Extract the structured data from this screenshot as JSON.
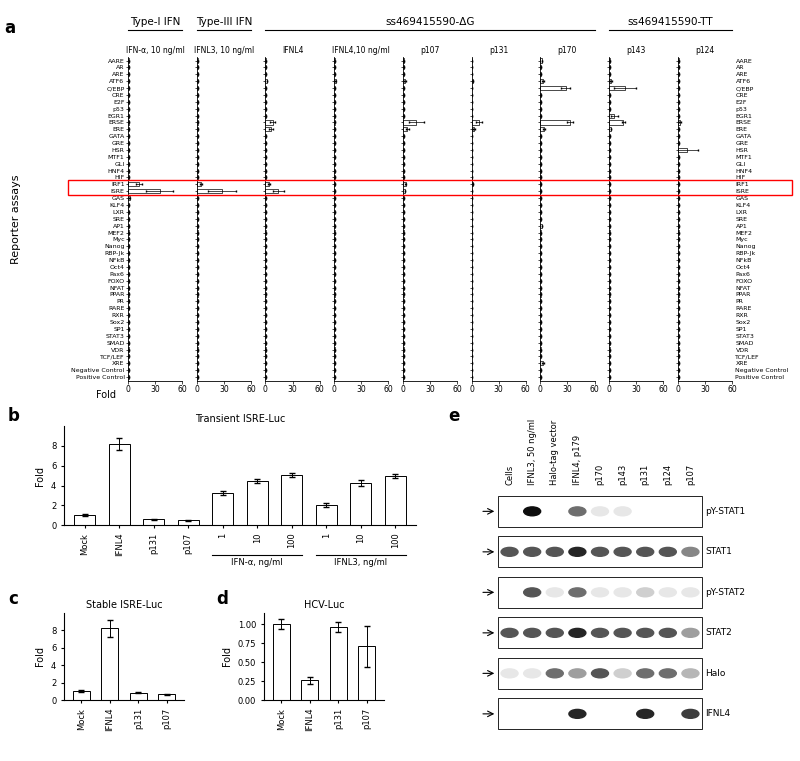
{
  "chart_data": [
    {
      "panel": "a",
      "type": "bar",
      "orientation": "horizontal",
      "color": "#ffffff",
      "xlabel": "Fold",
      "ylabel": "Reporter assays",
      "xlim": [
        0,
        60
      ],
      "xticks": [
        0,
        30,
        60
      ],
      "highlight": [
        "IRF1",
        "ISRE"
      ],
      "categories": [
        "AARE",
        "AR",
        "ARE",
        "ATF6",
        "C/EBP",
        "CRE",
        "E2F",
        "p53",
        "EGR1",
        "ERSE",
        "ERE",
        "GATA",
        "GRE",
        "HSR",
        "MTF1",
        "GLI",
        "HNF4",
        "HIF",
        "IRF1",
        "ISRE",
        "GAS",
        "KLF4",
        "LXR",
        "SRE",
        "AP1",
        "MEF2",
        "Myc",
        "Nanog",
        "RBP-Jk",
        "NFkB",
        "Oct4",
        "Pax6",
        "FOXO",
        "NFAT",
        "PPAR",
        "PR",
        "RARE",
        "RXR",
        "Sox2",
        "SP1",
        "STAT3",
        "SMAD",
        "VDR",
        "TCF/LEF",
        "XRE",
        "Negative Control",
        "Positive Control"
      ],
      "series": [
        {
          "name": "IFN-α, 10 ng/ml",
          "group": "Type-I IFN",
          "values": [
            1,
            1,
            1,
            1,
            1,
            1,
            1,
            1,
            1,
            1,
            1,
            1,
            1,
            1,
            1,
            1,
            1,
            1,
            12,
            35,
            2,
            1,
            1,
            1,
            1,
            1,
            1,
            1,
            1,
            1,
            1,
            1,
            1,
            1,
            1,
            1,
            1,
            1,
            1,
            1,
            1,
            1,
            1,
            1,
            1,
            1,
            1
          ],
          "errors": [
            0,
            0,
            0,
            0,
            0,
            0,
            0,
            0,
            0,
            0,
            0,
            0,
            0,
            0,
            0,
            0,
            0,
            0,
            3,
            15,
            0.5,
            0,
            0,
            0,
            0,
            0,
            0,
            0,
            0,
            0,
            0,
            0,
            0,
            0,
            0,
            0,
            0,
            0,
            0,
            0,
            0,
            0,
            0,
            0,
            0,
            0,
            0
          ]
        },
        {
          "name": "IFNL3, 10 ng/ml",
          "group": "Type-III IFN",
          "values": [
            1,
            1,
            1,
            1,
            1,
            1,
            1,
            1,
            1,
            1,
            1,
            1,
            1,
            1,
            1,
            1,
            1,
            1,
            5,
            28,
            1,
            1,
            1,
            1,
            1,
            1,
            1,
            1,
            1,
            1,
            1,
            1,
            1,
            1,
            1,
            1,
            1,
            1,
            1,
            1,
            1,
            1,
            1,
            1,
            1,
            1,
            1
          ],
          "errors": [
            0,
            0,
            0,
            0,
            0,
            0,
            0,
            0,
            0,
            0,
            0,
            0,
            0,
            0,
            0,
            0,
            0,
            0,
            1,
            15,
            0,
            0,
            0,
            0,
            0,
            0,
            0,
            0,
            0,
            0,
            0,
            0,
            0,
            0,
            0,
            0,
            0,
            0,
            0,
            0,
            0,
            0,
            0,
            0,
            0,
            0,
            0
          ]
        },
        {
          "name": "IFNL4",
          "group": "ss469415590-ΔG",
          "values": [
            1,
            1,
            1,
            2,
            1,
            1,
            1,
            1,
            1,
            8,
            6,
            1,
            1,
            1,
            1,
            1,
            1,
            1,
            4,
            14,
            1,
            1,
            1,
            1,
            1,
            1,
            1,
            1,
            1,
            1,
            1,
            1,
            1,
            1,
            1,
            1,
            1,
            1,
            1,
            1,
            1,
            1,
            1,
            1,
            1,
            1,
            1
          ],
          "errors": [
            0,
            0,
            0,
            0,
            0,
            0,
            0,
            0,
            0,
            3,
            2,
            0,
            0,
            0,
            0,
            0,
            0,
            0,
            1,
            6,
            0,
            0,
            0,
            0,
            0,
            0,
            0,
            0,
            0,
            0,
            0,
            0,
            0,
            0,
            0,
            0,
            0,
            0,
            0,
            0,
            0,
            0,
            0,
            0,
            0,
            0,
            0
          ]
        },
        {
          "name": "IFNL4,10 ng/ml",
          "group": "ss469415590-ΔG",
          "values": [
            1,
            1,
            1,
            2,
            1.5,
            1,
            1,
            1,
            1,
            1.5,
            1,
            1,
            1,
            1,
            1,
            1,
            1,
            1,
            1,
            1.5,
            1,
            1,
            1,
            1,
            1,
            1,
            1,
            1,
            1,
            1,
            1,
            1,
            1,
            1,
            1,
            1,
            1,
            1,
            1,
            1,
            1,
            1,
            1,
            1,
            1,
            1,
            1
          ],
          "errors": [
            0,
            0,
            0,
            0.5,
            0,
            0,
            0,
            0,
            0,
            0,
            0,
            0,
            0,
            0,
            0,
            0,
            0,
            0,
            0,
            0,
            0,
            0,
            0,
            0,
            0,
            0,
            0,
            0,
            0,
            0,
            0,
            0,
            0,
            0,
            0,
            0,
            0,
            0,
            0,
            0,
            0,
            0,
            0,
            0,
            0,
            0,
            0
          ]
        },
        {
          "name": "p107",
          "group": "ss469415590-ΔG",
          "values": [
            1,
            1,
            1,
            2,
            1,
            1,
            1,
            1,
            1,
            15,
            5,
            1,
            1,
            1,
            1,
            1,
            1,
            1,
            3,
            2,
            1,
            1,
            1,
            1,
            1,
            1,
            1,
            1,
            1,
            1,
            1,
            1,
            1,
            1,
            1,
            1,
            1,
            1,
            1,
            1,
            1,
            1,
            1,
            1,
            1,
            1,
            1
          ],
          "errors": [
            0,
            0,
            0,
            1,
            0,
            0,
            0,
            0,
            0,
            8,
            2,
            0,
            0,
            0,
            0,
            0,
            0,
            0,
            1,
            0,
            0,
            0,
            0,
            0,
            0,
            0,
            0,
            0,
            0,
            0,
            0,
            0,
            0,
            0,
            0,
            0,
            0,
            0,
            0,
            0,
            0,
            0,
            0,
            0,
            0,
            0,
            0
          ]
        },
        {
          "name": "p131",
          "group": "ss469415590-ΔG",
          "values": [
            1,
            1,
            1,
            2,
            1,
            1,
            1,
            1,
            1,
            8,
            3,
            1,
            1,
            1,
            1,
            1,
            1,
            1,
            1.5,
            1,
            1,
            1,
            1,
            1,
            1,
            1,
            1,
            1,
            1,
            1,
            1,
            1,
            1,
            1,
            1,
            1,
            1,
            1,
            1,
            1,
            1,
            1,
            1,
            1,
            1,
            1,
            1
          ],
          "errors": [
            0,
            0,
            0,
            0,
            0,
            0,
            0,
            0,
            0,
            3,
            1,
            0,
            0,
            0,
            0,
            0,
            0,
            0,
            0,
            0,
            0,
            0,
            0,
            0,
            0,
            0,
            0,
            0,
            0,
            0,
            0,
            0,
            0,
            0,
            0,
            0,
            0,
            0,
            0,
            0,
            0,
            0,
            0,
            0,
            0,
            0,
            0
          ]
        },
        {
          "name": "p170",
          "group": "ss469415590-ΔG",
          "values": [
            2,
            1,
            1,
            3,
            28,
            1,
            1,
            1,
            1,
            33,
            4,
            1,
            1,
            1,
            1,
            1,
            1,
            1,
            1,
            1,
            1,
            1,
            1,
            1,
            2,
            1,
            1,
            1,
            1,
            1,
            1,
            1,
            1,
            1,
            1,
            1,
            1,
            1,
            1,
            1,
            1,
            1,
            1,
            1,
            3,
            1,
            1
          ],
          "errors": [
            0,
            0,
            0,
            1,
            5,
            0,
            0,
            0,
            0,
            3,
            1,
            0,
            0,
            0,
            0,
            0,
            0,
            0,
            0,
            0,
            0,
            0,
            0,
            0,
            0,
            0,
            0,
            0,
            0,
            0,
            0,
            0,
            0,
            0,
            0,
            0,
            0,
            0,
            0,
            0,
            0,
            0,
            0,
            0,
            1,
            0,
            0
          ]
        },
        {
          "name": "p143",
          "group": "ss469415590-TT",
          "values": [
            1,
            1,
            1,
            2,
            18,
            1,
            1,
            1,
            6,
            16,
            2,
            1,
            1,
            1,
            1,
            1,
            1,
            1,
            1,
            1,
            1,
            1,
            1,
            1,
            1,
            1,
            1,
            1,
            1,
            1,
            1,
            1,
            1,
            1,
            1,
            1,
            1,
            1,
            1,
            1,
            1,
            1,
            1,
            1,
            1,
            1,
            1
          ],
          "errors": [
            0,
            0,
            0,
            1,
            12,
            0,
            0,
            0,
            4,
            2,
            0,
            0,
            0,
            0,
            0,
            0,
            0,
            0,
            0,
            0,
            0,
            0,
            0,
            0,
            0,
            0,
            0,
            0,
            0,
            0,
            0,
            0,
            0,
            0,
            0,
            0,
            0,
            0,
            0,
            0,
            0,
            0,
            0,
            0,
            0,
            0,
            0
          ]
        },
        {
          "name": "p124",
          "group": "ss469415590-TT",
          "values": [
            1,
            1,
            1,
            1,
            1,
            1,
            1,
            1,
            1,
            3,
            1,
            1,
            1,
            10,
            1,
            1,
            1,
            1,
            1,
            1,
            1,
            1,
            1,
            1,
            1,
            1,
            1,
            1,
            1,
            1,
            1,
            1,
            1,
            1,
            1,
            1,
            1,
            1,
            1,
            1,
            1,
            1,
            1,
            1,
            1,
            1,
            1
          ],
          "errors": [
            0,
            0,
            0,
            0,
            0,
            0,
            0,
            0,
            0,
            1,
            0,
            0,
            0,
            12,
            0,
            0,
            0,
            0,
            0,
            0,
            0,
            0,
            0,
            0,
            0,
            0,
            0,
            0,
            0,
            0,
            0,
            0,
            0,
            0,
            0,
            0,
            0,
            0,
            0,
            0,
            0,
            0,
            0,
            0,
            0,
            0,
            0
          ]
        }
      ]
    },
    {
      "panel": "b",
      "type": "bar",
      "title": "Transient ISRE-Luc",
      "ylabel": "Fold",
      "color": "#ffffff",
      "categories": [
        "Mock",
        "IFNL4",
        "p131",
        "p107",
        "1",
        "10",
        "100",
        "1",
        "10",
        "100"
      ],
      "groups": [
        null,
        null,
        null,
        null,
        "IFN-α, ng/ml",
        "IFN-α, ng/ml",
        "IFN-α, ng/ml",
        "IFNL3, ng/ml",
        "IFNL3, ng/ml",
        "IFNL3, ng/ml"
      ],
      "values": [
        1,
        8.2,
        0.6,
        0.5,
        3.2,
        4.5,
        5.1,
        2.0,
        4.3,
        5.0
      ],
      "errors": [
        0.1,
        0.6,
        0.05,
        0.05,
        0.2,
        0.2,
        0.2,
        0.2,
        0.3,
        0.2
      ],
      "ylim": [
        0,
        10
      ],
      "yticks": [
        0,
        2,
        4,
        6,
        8
      ]
    },
    {
      "panel": "c",
      "type": "bar",
      "title": "Stable ISRE-Luc",
      "ylabel": "Fold",
      "color": "#ffffff",
      "categories": [
        "Mock",
        "IFNL4",
        "p131",
        "p107"
      ],
      "values": [
        1,
        8.2,
        0.85,
        0.65
      ],
      "errors": [
        0.1,
        1.0,
        0.05,
        0.05
      ],
      "ylim": [
        0,
        10
      ],
      "yticks": [
        0,
        2,
        4,
        6,
        8
      ]
    },
    {
      "panel": "d",
      "type": "bar",
      "title": "HCV-Luc",
      "ylabel": "Fold",
      "color": "#ffffff",
      "categories": [
        "Mock",
        "IFNL4",
        "p131",
        "p107"
      ],
      "values": [
        1.0,
        0.26,
        0.96,
        0.71
      ],
      "errors": [
        0.07,
        0.05,
        0.07,
        0.27
      ],
      "ylim": [
        0,
        1.15
      ],
      "yticks": [
        {
          "value": 0,
          "label": "0.00"
        },
        {
          "value": 0.25,
          "label": "0.25"
        },
        {
          "value": 0.5,
          "label": "0.50"
        },
        {
          "value": 0.75,
          "label": "0.75"
        },
        {
          "value": 1.0,
          "label": "1.00"
        }
      ]
    }
  ],
  "blot": {
    "panel": "e",
    "type": "western blot",
    "lanes": [
      "Cells",
      "IFNL3, 50 ng/ml",
      "Halo-tag vector",
      "IFNL4, p179",
      "p170",
      "p143",
      "p131",
      "p124",
      "p107"
    ],
    "rows": [
      "pY-STAT1",
      "STAT1",
      "pY-STAT2",
      "STAT2",
      "Halo",
      "IFNL4"
    ],
    "intensities": [
      [
        0,
        1,
        0,
        0.6,
        0.1,
        0.1,
        0,
        0,
        0
      ],
      [
        0.7,
        0.7,
        0.7,
        0.9,
        0.7,
        0.7,
        0.7,
        0.7,
        0.5
      ],
      [
        0,
        0.7,
        0.1,
        0.6,
        0.1,
        0.1,
        0.2,
        0.1,
        0.1
      ],
      [
        0.7,
        0.7,
        0.7,
        0.9,
        0.7,
        0.7,
        0.7,
        0.7,
        0.4
      ],
      [
        0.1,
        0.1,
        0.6,
        0.4,
        0.7,
        0.2,
        0.6,
        0.6,
        0.3
      ],
      [
        0,
        0,
        0,
        0.9,
        0,
        0,
        0.9,
        0,
        0.8
      ]
    ]
  }
}
